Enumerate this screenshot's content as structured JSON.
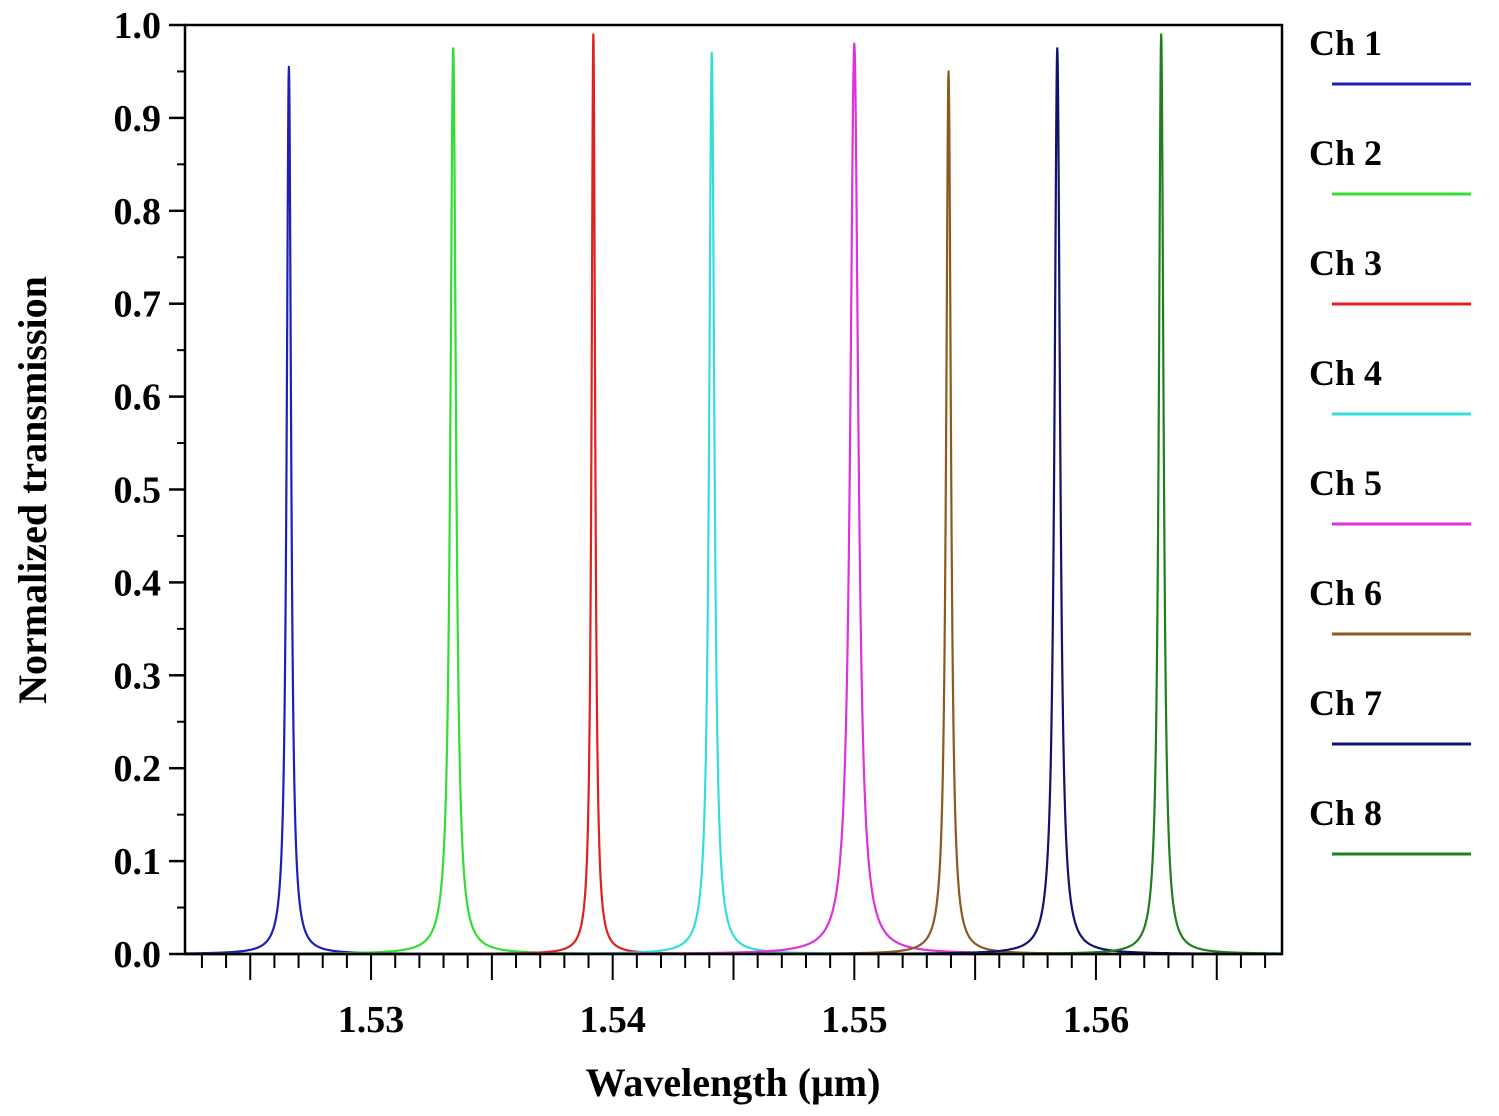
{
  "chart_data": {
    "type": "line",
    "title": "",
    "xlabel": "Wavelength (μm)",
    "ylabel": "Normalized transmission",
    "xlim": [
      1.5223,
      1.5677
    ],
    "ylim": [
      0.0,
      1.0
    ],
    "x_ticks": [
      1.53,
      1.54,
      1.55,
      1.56
    ],
    "x_tick_labels": [
      "1.53",
      "1.54",
      "1.55",
      "1.56"
    ],
    "y_ticks": [
      0.0,
      0.1,
      0.2,
      0.3,
      0.4,
      0.5,
      0.6,
      0.7,
      0.8,
      0.9,
      1.0
    ],
    "y_tick_labels": [
      "0.0",
      "0.1",
      "0.2",
      "0.3",
      "0.4",
      "0.5",
      "0.6",
      "0.7",
      "0.8",
      "0.9",
      "1.0"
    ],
    "grid": false,
    "legend_position": "right-outside",
    "series": [
      {
        "name": "Ch 1",
        "color": "#1f1fb4",
        "peak_x": 1.5266,
        "peak_y": 0.955,
        "fwhm": 0.00022
      },
      {
        "name": "Ch 2",
        "color": "#33dd33",
        "peak_x": 1.5334,
        "peak_y": 0.975,
        "fwhm": 0.00028
      },
      {
        "name": "Ch 3",
        "color": "#dd2222",
        "peak_x": 1.5392,
        "peak_y": 0.99,
        "fwhm": 0.00018
      },
      {
        "name": "Ch 4",
        "color": "#33dddd",
        "peak_x": 1.5441,
        "peak_y": 0.97,
        "fwhm": 0.00026
      },
      {
        "name": "Ch 5",
        "color": "#dd33dd",
        "peak_x": 1.55,
        "peak_y": 0.98,
        "fwhm": 0.0004
      },
      {
        "name": "Ch 6",
        "color": "#8b5a1f",
        "peak_x": 1.5539,
        "peak_y": 0.95,
        "fwhm": 0.00024
      },
      {
        "name": "Ch 7",
        "color": "#11116e",
        "peak_x": 1.5584,
        "peak_y": 0.975,
        "fwhm": 0.00028
      },
      {
        "name": "Ch 8",
        "color": "#1f7f1f",
        "peak_x": 1.5627,
        "peak_y": 0.99,
        "fwhm": 0.00024
      }
    ]
  }
}
